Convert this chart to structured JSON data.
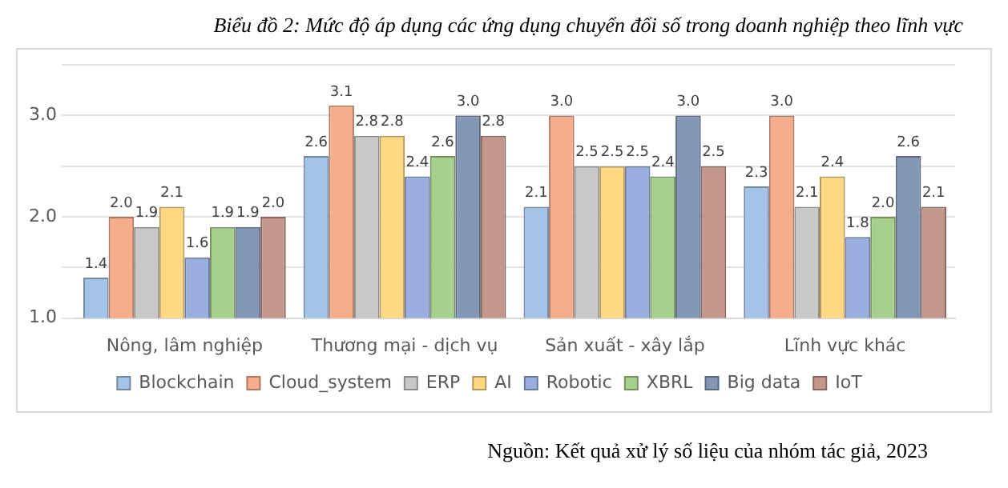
{
  "chart_data": {
    "type": "bar",
    "title": "Biểu đồ 2: Mức độ áp dụng các ứng dụng chuyển đổi số trong doanh nghiệp theo lĩnh vực",
    "categories": [
      "Nông, lâm nghiệp",
      "Thương mại - dịch vụ",
      "Sản xuất - xây lắp",
      "Lĩnh vực khác"
    ],
    "series": [
      {
        "name": "Blockchain",
        "color": "#a3c4e8",
        "values": [
          1.4,
          2.6,
          2.1,
          2.3
        ],
        "value_labels": [
          "1.4",
          "2.6",
          "2.1",
          "2.3"
        ]
      },
      {
        "name": "Cloud_system",
        "color": "#f5ad8c",
        "values": [
          2.0,
          3.1,
          3.0,
          3.0
        ],
        "value_labels": [
          "2.0",
          "3.1",
          "3.0",
          "3.0"
        ]
      },
      {
        "name": "ERP",
        "color": "#c8c8c8",
        "values": [
          1.9,
          2.8,
          2.5,
          2.1
        ],
        "value_labels": [
          "1.9",
          "2.8",
          "2.5",
          "2.1"
        ]
      },
      {
        "name": "AI",
        "color": "#ffd883",
        "values": [
          2.1,
          2.8,
          2.5,
          2.4
        ],
        "value_labels": [
          "2.1",
          "2.8",
          "2.5",
          "2.4"
        ]
      },
      {
        "name": "Robotic",
        "color": "#9aaee0",
        "values": [
          1.6,
          2.4,
          2.5,
          1.8
        ],
        "value_labels": [
          "1.6",
          "2.4",
          "2.5",
          "1.8"
        ]
      },
      {
        "name": "XBRL",
        "color": "#a8d08d",
        "values": [
          1.9,
          2.6,
          2.4,
          2.0
        ],
        "value_labels": [
          "1.9",
          "2.6",
          "2.4",
          "2.0"
        ]
      },
      {
        "name": "Big data",
        "color": "#8396b4",
        "values": [
          1.9,
          3.0,
          3.0,
          2.6
        ],
        "value_labels": [
          "1.9",
          "3.0",
          "3.0",
          "2.6"
        ]
      },
      {
        "name": "IoT",
        "color": "#c4968c",
        "values": [
          2.0,
          2.8,
          2.5,
          2.1
        ],
        "value_labels": [
          "2.0",
          "2.8",
          "2.5",
          "2.1"
        ]
      }
    ],
    "ylim": [
      1.0,
      3.5
    ],
    "yticks": [
      {
        "value": 1,
        "label": "1.0"
      },
      {
        "value": 1.5,
        "label": null
      },
      {
        "value": 2,
        "label": "2.0"
      },
      {
        "value": 2.5,
        "label": null
      },
      {
        "value": 3,
        "label": "3.0"
      },
      {
        "value": 3.5,
        "label": null
      }
    ],
    "grid": "y",
    "legend": "bottom",
    "annotations": [
      "Nguồn: Kết quả xử lý số liệu của nhóm tác giả, 2023"
    ]
  }
}
